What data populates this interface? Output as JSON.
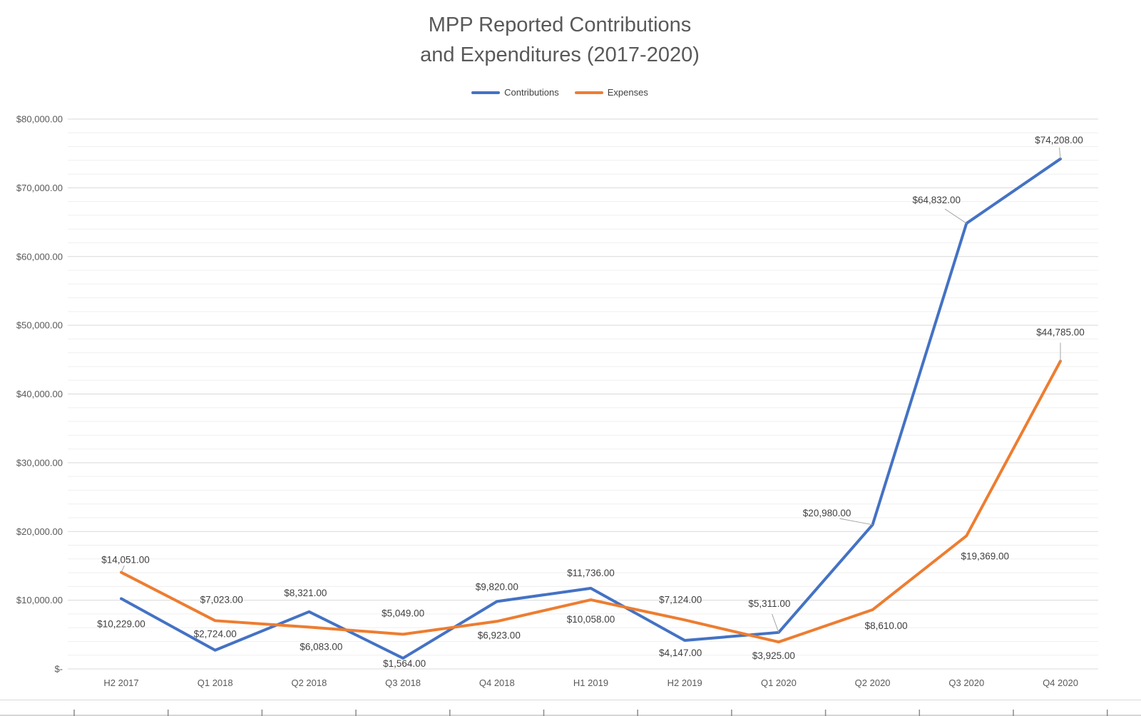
{
  "chart_data": {
    "type": "line",
    "title": "MPP Reported Contributions and Expenditures (2017-2020)",
    "title_lines": [
      "MPP Reported Contributions",
      "and Expenditures (2017-2020)"
    ],
    "categories": [
      "H2 2017",
      "Q1 2018",
      "Q2 2018",
      "Q3 2018",
      "Q4 2018",
      "H1 2019",
      "H2 2019",
      "Q1 2020",
      "Q2 2020",
      "Q3 2020",
      "Q4 2020"
    ],
    "series": [
      {
        "name": "Contributions",
        "color": "#4472C4",
        "values": [
          10229,
          2724,
          8321,
          1564,
          9820,
          11736,
          4147,
          5311,
          20980,
          64832,
          74208
        ],
        "data_labels": [
          "$10,229.00",
          "$2,724.00",
          "$8,321.00",
          "$1,564.00",
          "$9,820.00",
          "$11,736.00",
          "$4,147.00",
          "$5,311.00",
          "$20,980.00",
          "$64,832.00",
          "$74,208.00"
        ]
      },
      {
        "name": "Expenses",
        "color": "#ED7D31",
        "values": [
          14051,
          7023,
          6083,
          5049,
          6923,
          10058,
          7124,
          3925,
          8610,
          19369,
          44785
        ],
        "data_labels": [
          "$14,051.00",
          "$7,023.00",
          "$6,083.00",
          "$5,049.00",
          "$6,923.00",
          "$10,058.00",
          "$7,124.00",
          "$3,925.00",
          "$8,610.00",
          "$19,369.00",
          "$44,785.00"
        ]
      }
    ],
    "y_axis": {
      "min": 0,
      "max": 80000,
      "major_step": 10000,
      "minor_step": 2000,
      "tick_labels": [
        "$-",
        "$10,000.00",
        "$20,000.00",
        "$30,000.00",
        "$40,000.00",
        "$50,000.00",
        "$60,000.00",
        "$70,000.00",
        "$80,000.00"
      ]
    },
    "legend": {
      "position": "top"
    },
    "grid": {
      "major": true,
      "minor": true
    },
    "data_labels_visible": true,
    "colors": {
      "grid_major": "#d9d9d9",
      "grid_minor": "#efefef",
      "leader_line": "#a6a6a6",
      "tick_text": "#595959",
      "label_text": "#404040"
    }
  }
}
